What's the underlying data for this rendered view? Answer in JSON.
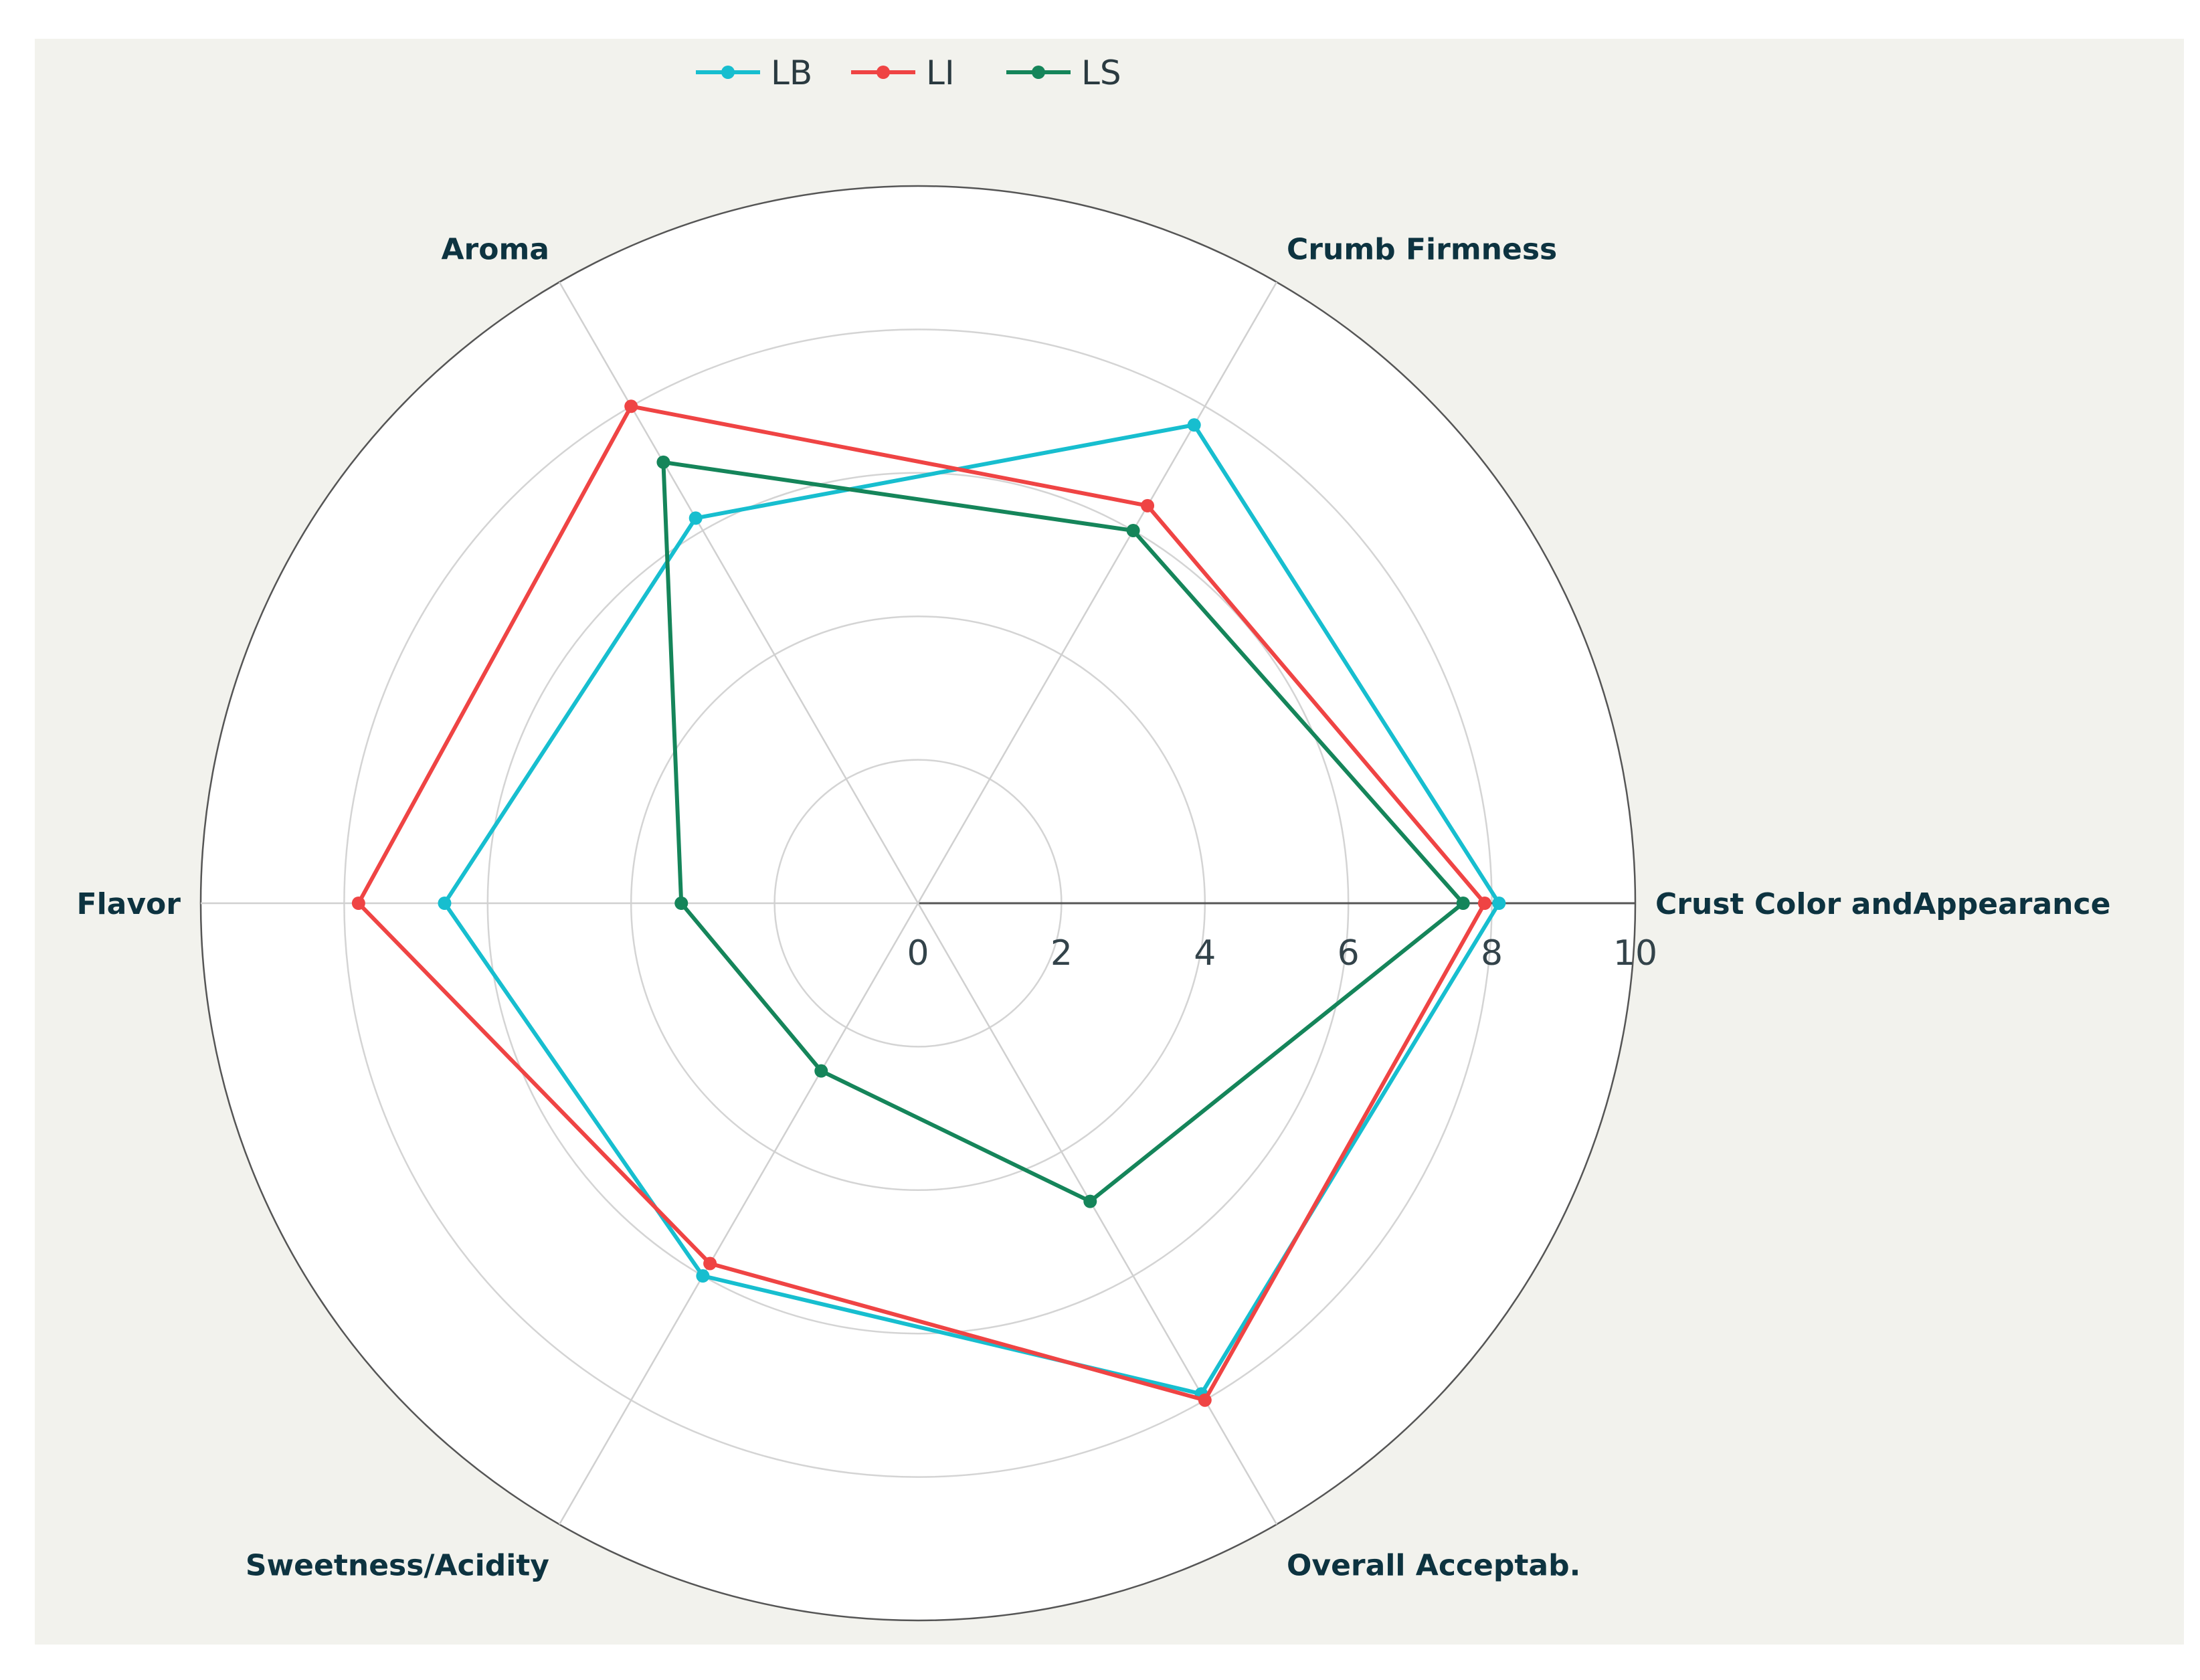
{
  "chart_data": {
    "type": "radar",
    "axes": [
      "Crust Color andAppearance",
      "Crumb Firmness",
      "Aroma",
      "Flavor",
      "Sweetness/Acidity",
      "Overall Acceptab."
    ],
    "range": [
      0,
      10
    ],
    "ticks": [
      "0",
      "2",
      "4",
      "6",
      "8",
      "10"
    ],
    "tick_values": [
      0,
      2,
      4,
      6,
      8,
      10
    ],
    "legend_position": "top-center",
    "series": [
      {
        "name": "LB",
        "color": "#17becf",
        "values": [
          8.1,
          7.7,
          6.2,
          6.6,
          6.0,
          7.9
        ]
      },
      {
        "name": "LI",
        "color": "#ef4444",
        "values": [
          7.9,
          6.4,
          8.0,
          7.8,
          5.8,
          8.0
        ]
      },
      {
        "name": "LS",
        "color": "#15855a",
        "values": [
          7.6,
          6.0,
          7.1,
          3.3,
          2.7,
          4.8
        ]
      }
    ]
  }
}
